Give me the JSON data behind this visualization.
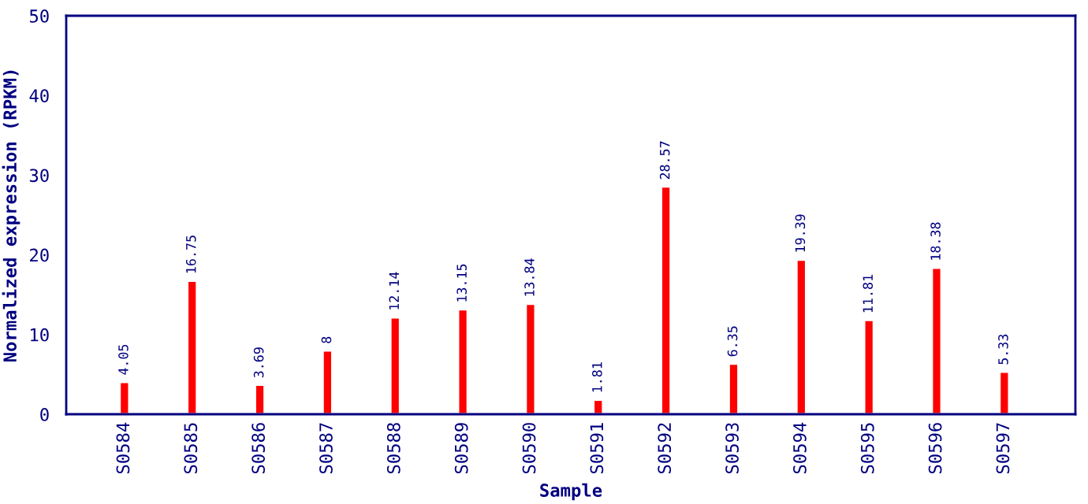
{
  "chart_data": {
    "type": "bar",
    "xlabel": "Sample",
    "ylabel": "Normalized expression (RPKM)",
    "categories": [
      "S0584",
      "S0585",
      "S0586",
      "S0587",
      "S0588",
      "S0589",
      "S0590",
      "S0591",
      "S0592",
      "S0593",
      "S0594",
      "S0595",
      "S0596",
      "S0597"
    ],
    "values": [
      4.05,
      16.75,
      3.69,
      8,
      12.14,
      13.15,
      13.84,
      1.81,
      28.57,
      6.35,
      19.39,
      11.81,
      18.38,
      5.33
    ],
    "color": "#ff0000",
    "ylim": [
      0,
      50
    ],
    "yticks": [
      0,
      10,
      20,
      30,
      40,
      50
    ],
    "data_labels": true,
    "grid": false
  }
}
